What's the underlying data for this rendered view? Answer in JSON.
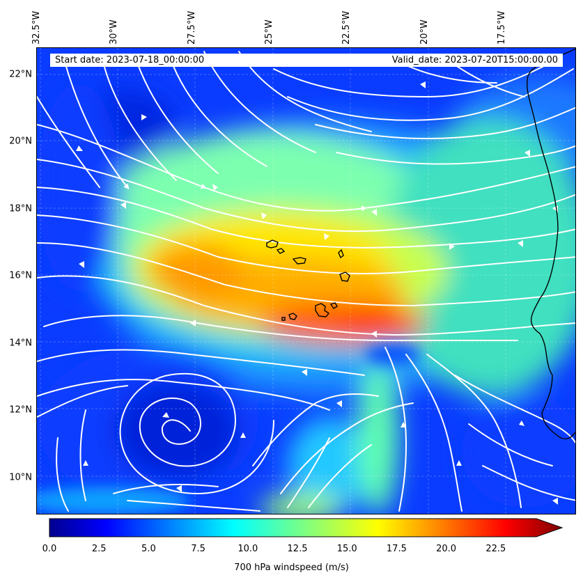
{
  "header": {
    "start_date": "Start date: 2023-07-18_00:00:00",
    "valid_date": "Valid_date: 2023-07-20T15:00:00.00"
  },
  "axes": {
    "lon_labels": [
      "32.5°W",
      "30°W",
      "27.5°W",
      "25°W",
      "22.5°W",
      "20°W",
      "17.5°W"
    ],
    "lon_values": [
      -32.5,
      -30,
      -27.5,
      -25,
      -22.5,
      -20,
      -17.5
    ],
    "lat_labels": [
      "22°N",
      "20°N",
      "18°N",
      "16°N",
      "14°N",
      "12°N",
      "10°N"
    ],
    "lat_values": [
      22,
      20,
      18,
      16,
      14,
      12,
      10
    ],
    "lon_range": [
      -32.5,
      -15.1
    ],
    "lat_range": [
      8.9,
      22.8
    ],
    "gridlines": "dashed, light"
  },
  "colorbar": {
    "label": "700 hPa windspeed (m/s)",
    "tick_labels": [
      "0.0",
      "2.5",
      "5.0",
      "7.5",
      "10.0",
      "12.5",
      "15.0",
      "17.5",
      "20.0",
      "22.5"
    ],
    "range": [
      0,
      25
    ],
    "extend": "max",
    "colormap": "jet"
  },
  "colors": {
    "streamline": "#ffffff",
    "coastline": "#000000",
    "background_low": "#0a3cff",
    "jet_core": "#ff3a00"
  },
  "map": {
    "field": "700 hPa windspeed",
    "features": [
      "Cape Verde islands",
      "West African coastline",
      "cyclonic circulation near 11.5°N 30°W",
      "wind speed maximum near 14.5°N 21°W"
    ]
  }
}
